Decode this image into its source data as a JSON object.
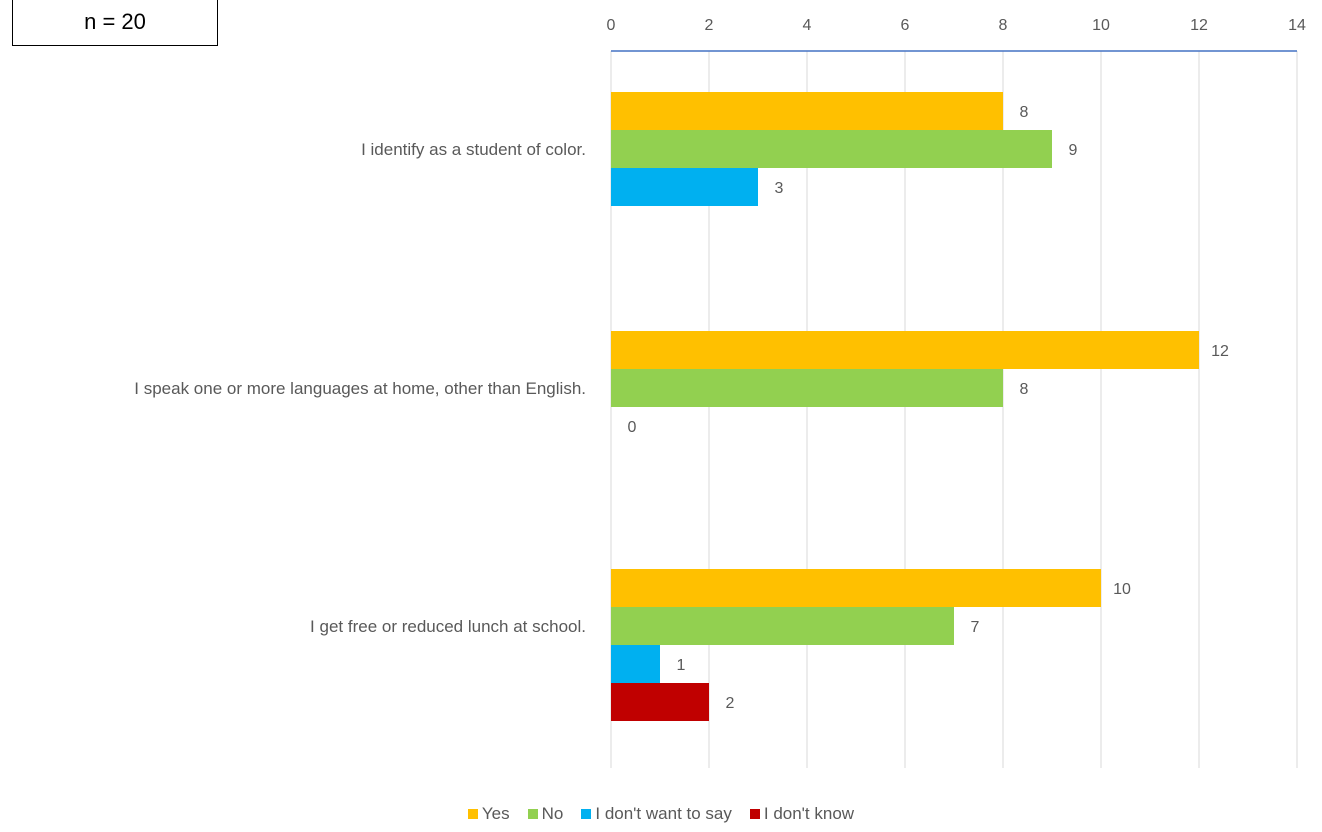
{
  "sample_note": "n = 20",
  "chart_data": {
    "type": "bar",
    "orientation": "horizontal",
    "categories": [
      "I identify as a student of color.",
      "I speak one or more languages at home, other than English.",
      "I get free or reduced lunch at school."
    ],
    "series": [
      {
        "name": "Yes",
        "color": "#FFC000",
        "values": [
          8,
          12,
          10
        ]
      },
      {
        "name": "No",
        "color": "#92D050",
        "values": [
          9,
          8,
          7
        ]
      },
      {
        "name": "I don't want to say",
        "color": "#00B0F0",
        "values": [
          3,
          0,
          1
        ]
      },
      {
        "name": "I don't know",
        "color": "#C00000",
        "values": [
          null,
          null,
          2
        ]
      }
    ],
    "xlim": [
      0,
      14
    ],
    "x_ticks": [
      0,
      2,
      4,
      6,
      8,
      10,
      12,
      14
    ],
    "x_axis_position": "top",
    "grid": true,
    "legend": "bottom"
  }
}
